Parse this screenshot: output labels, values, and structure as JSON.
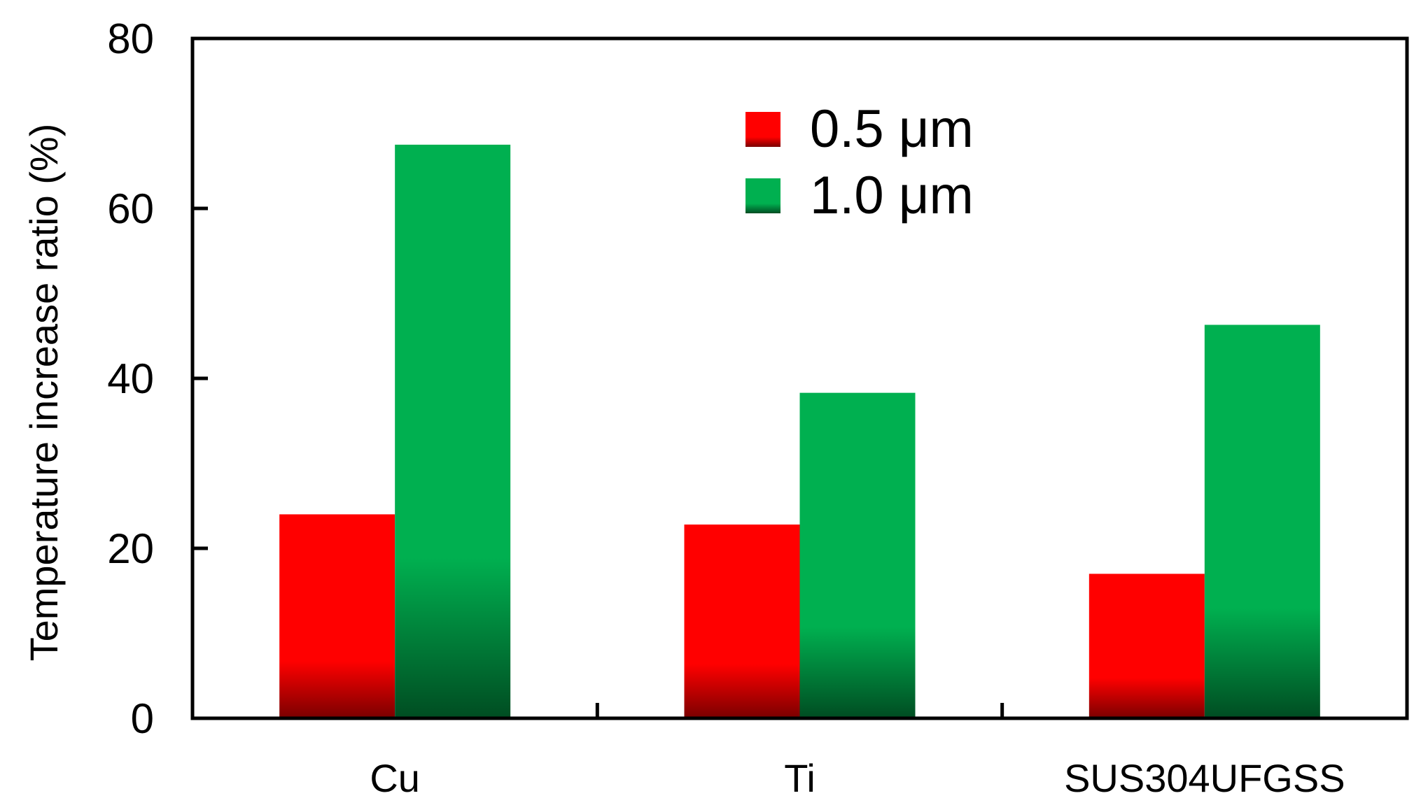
{
  "chart_data": {
    "type": "bar",
    "title": "",
    "xlabel": "",
    "ylabel": "Temperature increase ratio (%)",
    "ylim": [
      0,
      80
    ],
    "yticks": [
      "0",
      "20",
      "40",
      "60",
      "80"
    ],
    "categories": [
      "Cu",
      "Ti",
      "SUS304UFGSS"
    ],
    "series": [
      {
        "name": "0.5 μm",
        "values": [
          24,
          22.8,
          17
        ],
        "color": "#ff0000",
        "color_dark": "#7a0000"
      },
      {
        "name": "1.0 μm",
        "values": [
          67.5,
          38.3,
          46.3
        ],
        "color": "#00b050",
        "color_dark": "#004d22"
      }
    ],
    "legend_position": "top-center",
    "grid": false
  }
}
